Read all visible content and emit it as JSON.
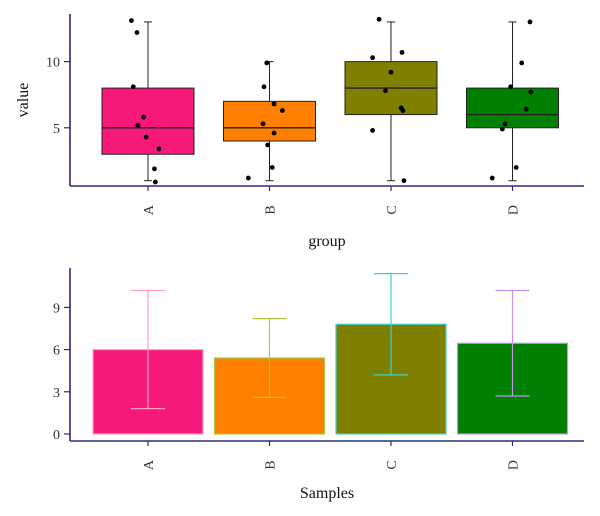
{
  "chart_data": [
    {
      "type": "box",
      "xlabel": "group",
      "ylabel": "value",
      "ylim": [
        0.6,
        13.6
      ],
      "yticks": [
        5,
        10
      ],
      "categories": [
        "A",
        "B",
        "C",
        "D"
      ],
      "colors": [
        "#f7197a",
        "#ff8000",
        "#808000",
        "#008000"
      ],
      "boxes": [
        {
          "group": "A",
          "whisker_low": 1,
          "q1": 3,
          "median": 5,
          "q3": 8,
          "whisker_high": 13
        },
        {
          "group": "B",
          "whisker_low": 1,
          "q1": 4,
          "median": 5,
          "q3": 7,
          "whisker_high": 10
        },
        {
          "group": "C",
          "whisker_low": 1,
          "q1": 6,
          "median": 8,
          "q3": 10,
          "whisker_high": 13
        },
        {
          "group": "D",
          "whisker_low": 1,
          "q1": 5,
          "median": 6,
          "q3": 8,
          "whisker_high": 13
        }
      ],
      "points": [
        {
          "group": "A",
          "jitter": -0.18,
          "value": 13.1
        },
        {
          "group": "A",
          "jitter": -0.12,
          "value": 12.2
        },
        {
          "group": "A",
          "jitter": -0.16,
          "value": 8.1
        },
        {
          "group": "A",
          "jitter": -0.05,
          "value": 5.8
        },
        {
          "group": "A",
          "jitter": -0.11,
          "value": 5.2
        },
        {
          "group": "A",
          "jitter": -0.02,
          "value": 4.3
        },
        {
          "group": "A",
          "jitter": 0.12,
          "value": 3.4
        },
        {
          "group": "A",
          "jitter": 0.07,
          "value": 1.9
        },
        {
          "group": "A",
          "jitter": 0.08,
          "value": 0.9
        },
        {
          "group": "B",
          "jitter": -0.03,
          "value": 9.9
        },
        {
          "group": "B",
          "jitter": -0.06,
          "value": 8.1
        },
        {
          "group": "B",
          "jitter": 0.05,
          "value": 6.8
        },
        {
          "group": "B",
          "jitter": 0.14,
          "value": 6.3
        },
        {
          "group": "B",
          "jitter": -0.07,
          "value": 5.3
        },
        {
          "group": "B",
          "jitter": 0.05,
          "value": 4.6
        },
        {
          "group": "B",
          "jitter": -0.02,
          "value": 3.7
        },
        {
          "group": "B",
          "jitter": 0.03,
          "value": 2.0
        },
        {
          "group": "B",
          "jitter": -0.23,
          "value": 1.2
        },
        {
          "group": "C",
          "jitter": -0.13,
          "value": 13.2
        },
        {
          "group": "C",
          "jitter": 0.12,
          "value": 10.7
        },
        {
          "group": "C",
          "jitter": -0.2,
          "value": 10.3
        },
        {
          "group": "C",
          "jitter": 0.0,
          "value": 9.2
        },
        {
          "group": "C",
          "jitter": -0.06,
          "value": 7.8
        },
        {
          "group": "C",
          "jitter": 0.11,
          "value": 6.5
        },
        {
          "group": "C",
          "jitter": 0.13,
          "value": 6.3
        },
        {
          "group": "C",
          "jitter": -0.2,
          "value": 4.8
        },
        {
          "group": "C",
          "jitter": 0.14,
          "value": 1.0
        },
        {
          "group": "D",
          "jitter": 0.19,
          "value": 13.0
        },
        {
          "group": "D",
          "jitter": 0.1,
          "value": 9.9
        },
        {
          "group": "D",
          "jitter": -0.02,
          "value": 8.1
        },
        {
          "group": "D",
          "jitter": 0.2,
          "value": 7.7
        },
        {
          "group": "D",
          "jitter": -0.08,
          "value": 5.3
        },
        {
          "group": "D",
          "jitter": -0.11,
          "value": 4.9
        },
        {
          "group": "D",
          "jitter": 0.15,
          "value": 6.4
        },
        {
          "group": "D",
          "jitter": 0.04,
          "value": 2.0
        },
        {
          "group": "D",
          "jitter": -0.22,
          "value": 1.2
        }
      ]
    },
    {
      "type": "bar",
      "xlabel": "Samples",
      "ylabel": "",
      "ylim": [
        -0.5,
        11.8
      ],
      "yticks": [
        0,
        3,
        6,
        9
      ],
      "categories": [
        "A",
        "B",
        "C",
        "D"
      ],
      "values": [
        6.0,
        5.4,
        7.8,
        6.45
      ],
      "error_low": [
        1.8,
        2.6,
        4.2,
        2.7
      ],
      "error_high": [
        10.2,
        8.2,
        11.4,
        10.2
      ],
      "fill_colors": [
        "#f7197a",
        "#ff8000",
        "#808000",
        "#008000"
      ],
      "edge_colors": [
        "#f9a0c0",
        "#a8c840",
        "#40d0c8",
        "#c890f0"
      ]
    }
  ]
}
